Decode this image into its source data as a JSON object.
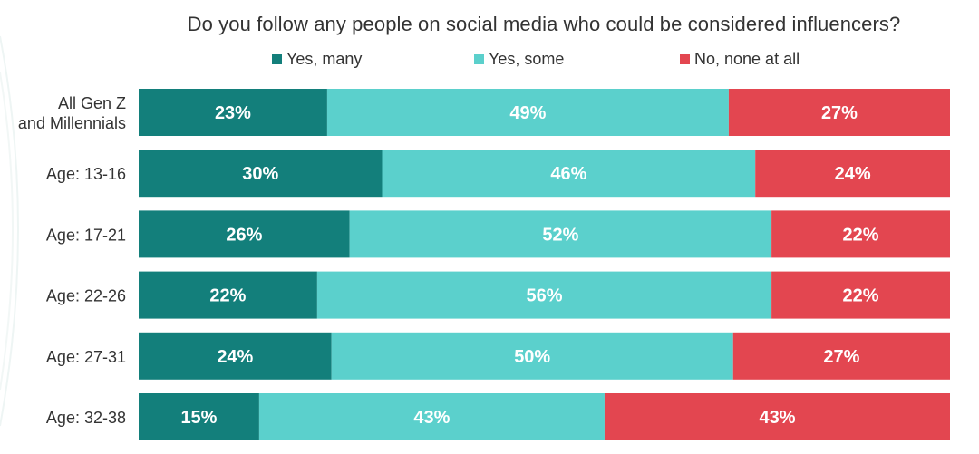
{
  "chart_data": {
    "type": "bar",
    "orientation": "horizontal",
    "stacked": true,
    "title": "Do you follow any people on social media who could be considered influencers?",
    "legend_position": "top",
    "grid": false,
    "categories": [
      "All Gen Z and Millennials",
      "Age: 13-16",
      "Age: 17-21",
      "Age: 22-26",
      "Age: 27-31",
      "Age: 32-38"
    ],
    "series": [
      {
        "name": "Yes, many",
        "color": "#137f7b",
        "values": [
          23,
          30,
          26,
          22,
          24,
          15
        ]
      },
      {
        "name": "Yes, some",
        "color": "#5bd0cc",
        "values": [
          49,
          46,
          52,
          56,
          50,
          43
        ]
      },
      {
        "name": "No, none at all",
        "color": "#e34650",
        "values": [
          27,
          24,
          22,
          22,
          27,
          43
        ]
      }
    ],
    "value_suffix": "%"
  }
}
